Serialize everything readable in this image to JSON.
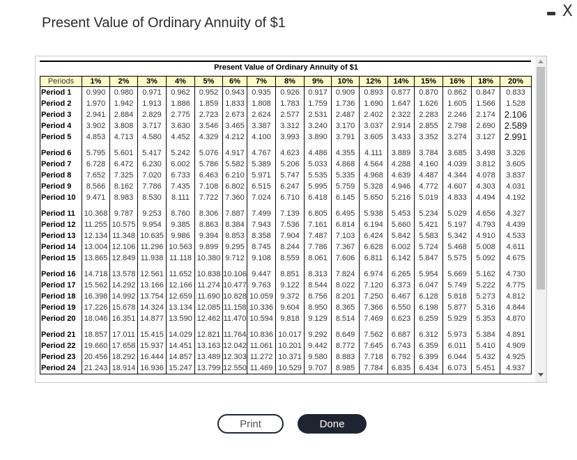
{
  "window": {
    "title": "Present Value of Ordinary Annuity of $1",
    "minimize_icon": "minimize-icon",
    "close_label": "X"
  },
  "table": {
    "caption": "Present Value of Ordinary Annuity of $1",
    "headers": [
      "Periods",
      "1%",
      "2%",
      "3%",
      "4%",
      "5%",
      "6%",
      "7%",
      "8%",
      "9%",
      "10%",
      "12%",
      "14%",
      "15%",
      "16%",
      "18%",
      "20%"
    ],
    "rows": [
      [
        "Period 1",
        "0.990",
        "0.980",
        "0.971",
        "0.962",
        "0.952",
        "0.943",
        "0.935",
        "0.926",
        "0.917",
        "0.909",
        "0.893",
        "0.877",
        "0.870",
        "0.862",
        "0.847",
        "0.833"
      ],
      [
        "Period 2",
        "1.970",
        "1.942",
        "1.913",
        "1.886",
        "1.859",
        "1.833",
        "1.808",
        "1.783",
        "1.759",
        "1.736",
        "1.690",
        "1.647",
        "1.626",
        "1.605",
        "1.566",
        "1.528"
      ],
      [
        "Period 3",
        "2.941",
        "2.884",
        "2.829",
        "2.775",
        "2.723",
        "2.673",
        "2.624",
        "2.577",
        "2.531",
        "2.487",
        "2.402",
        "2.322",
        "2.283",
        "2.246",
        "2.174",
        "2.106"
      ],
      [
        "Period 4",
        "3.902",
        "3.808",
        "3.717",
        "3.630",
        "3.546",
        "3.465",
        "3.387",
        "3.312",
        "3.240",
        "3.170",
        "3.037",
        "2.914",
        "2.855",
        "2.798",
        "2.690",
        "2.589"
      ],
      [
        "Period 5",
        "4.853",
        "4.713",
        "4.580",
        "4.452",
        "4.329",
        "4.212",
        "4.100",
        "3.993",
        "3.890",
        "3.791",
        "3.605",
        "3.433",
        "3.352",
        "3.274",
        "3.127",
        "2.991"
      ],
      [
        "Period 6",
        "5.795",
        "5.601",
        "5.417",
        "5.242",
        "5.076",
        "4.917",
        "4.767",
        "4.623",
        "4.486",
        "4.355",
        "4.111",
        "3.889",
        "3.784",
        "3.685",
        "3.498",
        "3.326"
      ],
      [
        "Period 7",
        "6.728",
        "6.472",
        "6.230",
        "6.002",
        "5.786",
        "5.582",
        "5.389",
        "5.206",
        "5.033",
        "4.868",
        "4.564",
        "4.288",
        "4.160",
        "4.039",
        "3.812",
        "3.605"
      ],
      [
        "Period 8",
        "7.652",
        "7.325",
        "7.020",
        "6.733",
        "6.463",
        "6.210",
        "5.971",
        "5.747",
        "5.535",
        "5.335",
        "4.968",
        "4.639",
        "4.487",
        "4.344",
        "4.078",
        "3.837"
      ],
      [
        "Period 9",
        "8.566",
        "8.162",
        "7.786",
        "7.435",
        "7.108",
        "6.802",
        "6.515",
        "6.247",
        "5.995",
        "5.759",
        "5.328",
        "4.946",
        "4.772",
        "4.607",
        "4.303",
        "4.031"
      ],
      [
        "Period 10",
        "9.471",
        "8.983",
        "8.530",
        "8.111",
        "7.722",
        "7.360",
        "7.024",
        "6.710",
        "6.418",
        "6.145",
        "5.650",
        "5.216",
        "5.019",
        "4.833",
        "4.494",
        "4.192"
      ],
      [
        "Period 11",
        "10.368",
        "9.787",
        "9.253",
        "8.760",
        "8.306",
        "7.887",
        "7.499",
        "7.139",
        "6.805",
        "6.495",
        "5.938",
        "5.453",
        "5.234",
        "5.029",
        "4.656",
        "4.327"
      ],
      [
        "Period 12",
        "11.255",
        "10.575",
        "9.954",
        "9.385",
        "8.863",
        "8.384",
        "7.943",
        "7.536",
        "7.161",
        "6.814",
        "6.194",
        "5.660",
        "5.421",
        "5.197",
        "4.793",
        "4.439"
      ],
      [
        "Period 13",
        "12.134",
        "11.348",
        "10.635",
        "9.986",
        "9.394",
        "8.853",
        "8.358",
        "7.904",
        "7.487",
        "7.103",
        "6.424",
        "5.842",
        "5.583",
        "5.342",
        "4.910",
        "4.533"
      ],
      [
        "Period 14",
        "13.004",
        "12.106",
        "11.296",
        "10.563",
        "9.899",
        "9.295",
        "8.745",
        "8.244",
        "7.786",
        "7.367",
        "6.628",
        "6.002",
        "5.724",
        "5.468",
        "5.008",
        "4.611"
      ],
      [
        "Period 15",
        "13.865",
        "12.849",
        "11.938",
        "11.118",
        "10.380",
        "9.712",
        "9.108",
        "8.559",
        "8.061",
        "7.606",
        "6.811",
        "6.142",
        "5.847",
        "5.575",
        "5.092",
        "4.675"
      ],
      [
        "Period 16",
        "14.718",
        "13.578",
        "12.561",
        "11.652",
        "10.838",
        "10.106",
        "9.447",
        "8.851",
        "8.313",
        "7.824",
        "6.974",
        "6.265",
        "5.954",
        "5.669",
        "5.162",
        "4.730"
      ],
      [
        "Period 17",
        "15.562",
        "14.292",
        "13.166",
        "12.166",
        "11.274",
        "10.477",
        "9.763",
        "9.122",
        "8.544",
        "8.022",
        "7.120",
        "6.373",
        "6.047",
        "5.749",
        "5.222",
        "4.775"
      ],
      [
        "Period 18",
        "16.398",
        "14.992",
        "13.754",
        "12.659",
        "11.690",
        "10.828",
        "10.059",
        "9.372",
        "8.756",
        "8.201",
        "7.250",
        "6.467",
        "6.128",
        "5.818",
        "5.273",
        "4.812"
      ],
      [
        "Period 19",
        "17.226",
        "15.678",
        "14.324",
        "13.134",
        "12.085",
        "11.158",
        "10.336",
        "9.604",
        "8.950",
        "8.365",
        "7.366",
        "6.550",
        "6.198",
        "5.877",
        "5.316",
        "4.844"
      ],
      [
        "Period 20",
        "18.046",
        "16.351",
        "14.877",
        "13.590",
        "12.462",
        "11.470",
        "10.594",
        "9.818",
        "9.129",
        "8.514",
        "7.469",
        "6.623",
        "6.259",
        "5.929",
        "5.353",
        "4.870"
      ],
      [
        "Period 21",
        "18.857",
        "17.011",
        "15.415",
        "14.029",
        "12.821",
        "11.764",
        "10.836",
        "10.017",
        "9.292",
        "8.649",
        "7.562",
        "6.687",
        "6.312",
        "5.973",
        "5.384",
        "4.891"
      ],
      [
        "Period 22",
        "19.660",
        "17.658",
        "15.937",
        "14.451",
        "13.163",
        "12.042",
        "11.061",
        "10.201",
        "9.442",
        "8.772",
        "7.645",
        "6.743",
        "6.359",
        "6.011",
        "5.410",
        "4.909"
      ],
      [
        "Period 23",
        "20.456",
        "18.292",
        "16.444",
        "14.857",
        "13.489",
        "12.303",
        "11.272",
        "10.371",
        "9.580",
        "8.883",
        "7.718",
        "6.792",
        "6.399",
        "6.044",
        "5.432",
        "4.925"
      ],
      [
        "Period 24",
        "21.243",
        "18.914",
        "16.936",
        "15.247",
        "13.799",
        "12.550",
        "11.469",
        "10.529",
        "9.707",
        "8.985",
        "7.784",
        "6.835",
        "6.434",
        "6.073",
        "5.451",
        "4.937"
      ]
    ]
  },
  "scrollbar": {
    "up_icon": "scroll-up-arrow-icon",
    "down_icon": "scroll-down-arrow-icon"
  },
  "buttons": {
    "print_label": "Print",
    "done_label": "Done"
  },
  "colors": {
    "header_bg": "#fffbc8",
    "done_bg": "#1f2530",
    "scroll_thumb": "#c1c1c1"
  }
}
